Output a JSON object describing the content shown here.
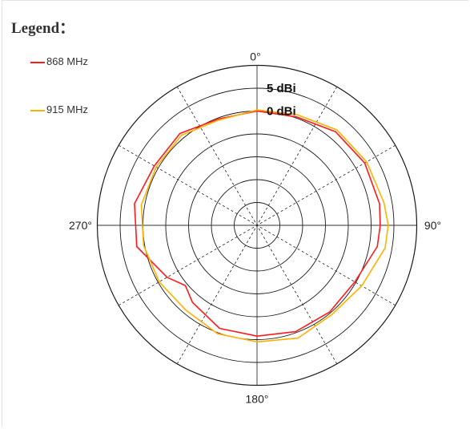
{
  "legend": {
    "title": "Legend：",
    "items": [
      {
        "name": "868 MHz",
        "color": "#ff1a1a"
      },
      {
        "name": "915 MHz",
        "color": "#ffb000"
      }
    ]
  },
  "chart_data": {
    "type": "polar-line",
    "angle_ticks": [
      {
        "deg": 0,
        "label": "0°"
      },
      {
        "deg": 90,
        "label": "90°"
      },
      {
        "deg": 180,
        "label": "180°"
      },
      {
        "deg": 270,
        "label": "270°"
      }
    ],
    "ring_labels": [
      {
        "label": "5 dBi",
        "ring": 6
      },
      {
        "label": "0 dBi",
        "ring": 5
      }
    ],
    "rings": 7,
    "radial_lines_deg": [
      0,
      30,
      60,
      90,
      120,
      150
    ],
    "series": [
      {
        "name": "868 MHz",
        "color": "#ff1a1a",
        "angles": [
          0,
          20,
          40,
          60,
          80,
          90,
          100,
          120,
          140,
          160,
          180,
          200,
          220,
          230,
          240,
          260,
          280,
          300,
          320,
          340,
          360
        ],
        "radius_rings": [
          5.0,
          5.05,
          5.35,
          5.45,
          5.45,
          5.4,
          5.35,
          4.95,
          4.95,
          4.95,
          4.85,
          4.8,
          4.4,
          4.1,
          4.55,
          5.35,
          5.45,
          5.2,
          5.25,
          4.95,
          5.0
        ]
      },
      {
        "name": "915 MHz",
        "color": "#ffb000",
        "angles": [
          0,
          20,
          40,
          60,
          80,
          90,
          100,
          120,
          140,
          160,
          180,
          200,
          220,
          240,
          260,
          280,
          300,
          320,
          340,
          360
        ],
        "radius_rings": [
          5.05,
          5.15,
          5.45,
          5.55,
          5.65,
          5.75,
          5.7,
          5.3,
          5.1,
          5.25,
          5.1,
          5.05,
          4.85,
          4.95,
          5.05,
          5.15,
          5.1,
          5.15,
          4.9,
          5.05
        ]
      }
    ]
  }
}
